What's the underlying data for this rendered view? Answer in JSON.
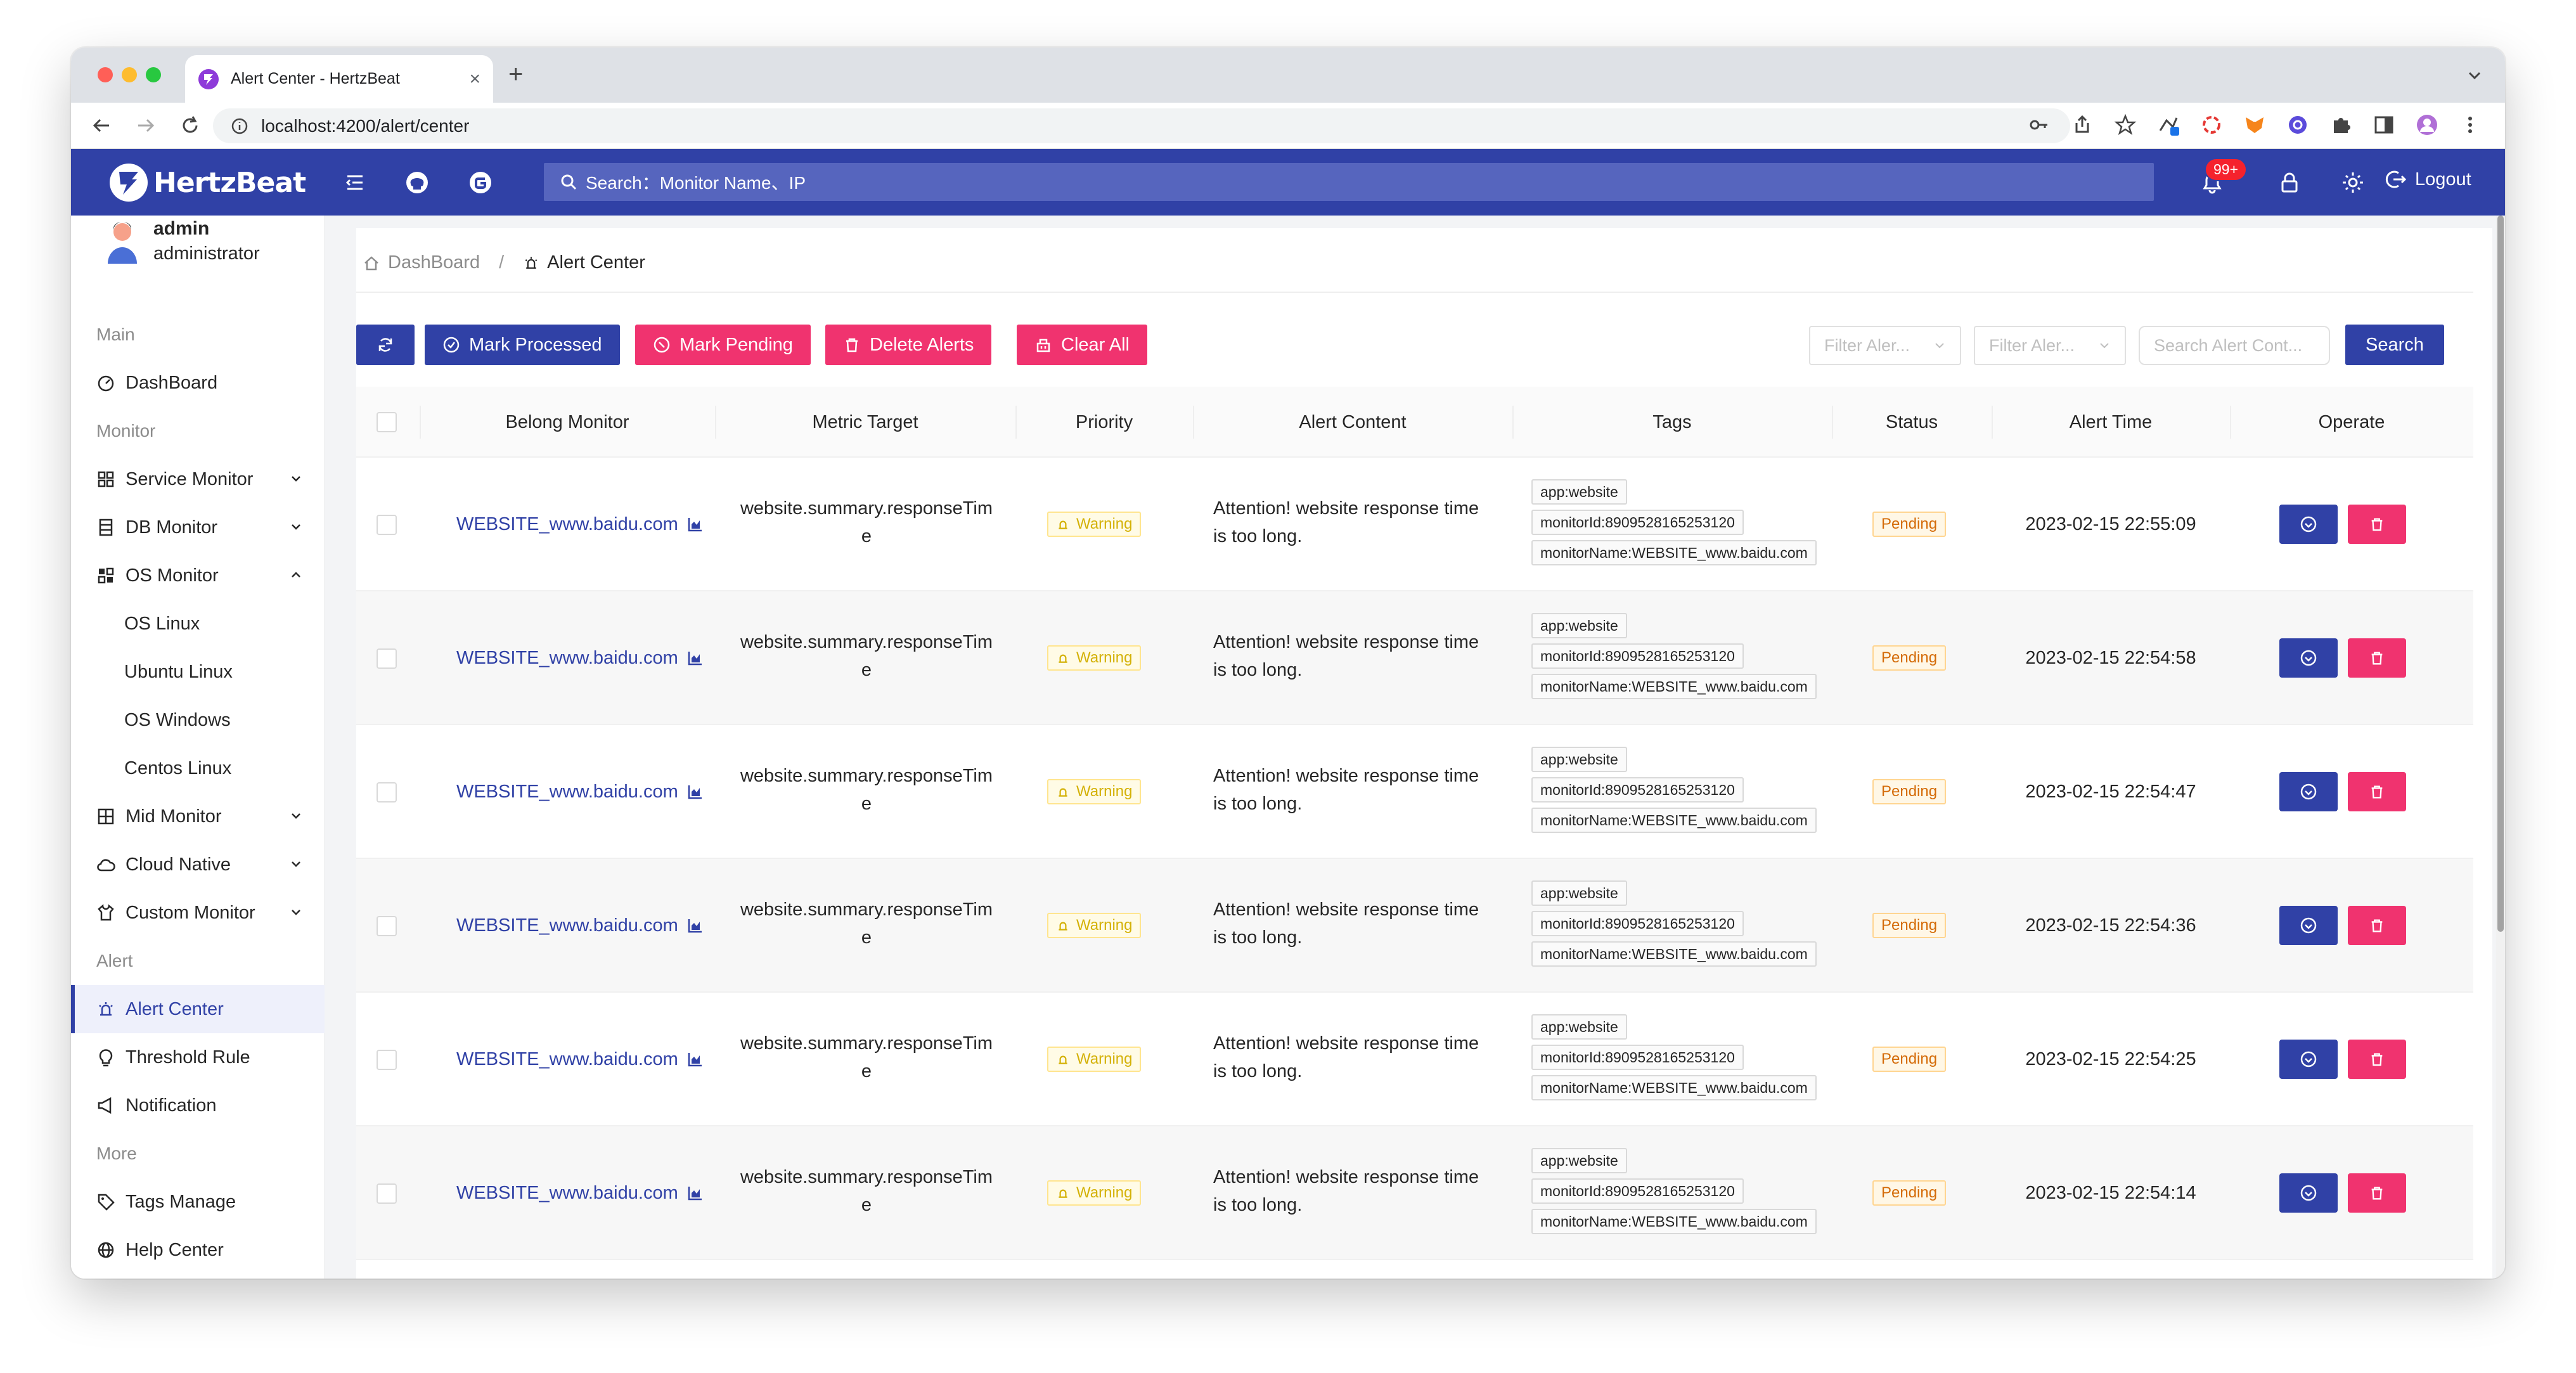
{
  "browser": {
    "tab_title": "Alert Center - HertzBeat",
    "url": "localhost:4200/alert/center",
    "traffic_lights": [
      "#ff5f57",
      "#febc2e",
      "#28c840"
    ]
  },
  "app": {
    "brand": "HertzBeat",
    "search_placeholder": "Search：Monitor Name、IP",
    "notification_badge": "99+",
    "logout_label": "Logout",
    "primary_color": "#3041a6",
    "danger_color": "#f0336f"
  },
  "user": {
    "name": "admin",
    "role": "administrator"
  },
  "sidebar": {
    "groups": {
      "main": "Main",
      "monitor": "Monitor",
      "alert": "Alert",
      "more": "More"
    },
    "items": {
      "dashboard": "DashBoard",
      "service_monitor": "Service Monitor",
      "db_monitor": "DB Monitor",
      "os_monitor": "OS Monitor",
      "os_linux": "OS Linux",
      "ubuntu_linux": "Ubuntu Linux",
      "os_windows": "OS Windows",
      "centos_linux": "Centos Linux",
      "mid_monitor": "Mid Monitor",
      "cloud_native": "Cloud Native",
      "custom_monitor": "Custom Monitor",
      "alert_center": "Alert Center",
      "threshold_rule": "Threshold Rule",
      "notification": "Notification",
      "tags_manage": "Tags Manage",
      "help_center": "Help Center"
    }
  },
  "breadcrumb": {
    "home": "DashBoard",
    "sep": "/",
    "current": "Alert Center"
  },
  "toolbar": {
    "mark_processed": "Mark Processed",
    "mark_pending": "Mark Pending",
    "delete_alerts": "Delete Alerts",
    "clear_all": "Clear All",
    "filter_priority": "Filter Aler...",
    "filter_status": "Filter Aler...",
    "search_content": "Search Alert Cont...",
    "search_button": "Search"
  },
  "table": {
    "columns": {
      "monitor": "Belong Monitor",
      "metric": "Metric Target",
      "priority": "Priority",
      "content": "Alert Content",
      "tags": "Tags",
      "status": "Status",
      "time": "Alert Time",
      "operate": "Operate"
    },
    "rows": [
      {
        "monitor": "WEBSITE_www.baidu.com",
        "metric1": "website.summary.responseTim",
        "metric2": "e",
        "priority": "Warning",
        "content1": "Attention! website response time",
        "content2": "is too long.",
        "tag1": "app:website",
        "tag2": "monitorId:8909528165253120",
        "tag3": "monitorName:WEBSITE_www.baidu.com",
        "status": "Pending",
        "time": "2023-02-15 22:55:09"
      },
      {
        "monitor": "WEBSITE_www.baidu.com",
        "metric1": "website.summary.responseTim",
        "metric2": "e",
        "priority": "Warning",
        "content1": "Attention! website response time",
        "content2": "is too long.",
        "tag1": "app:website",
        "tag2": "monitorId:8909528165253120",
        "tag3": "monitorName:WEBSITE_www.baidu.com",
        "status": "Pending",
        "time": "2023-02-15 22:54:58"
      },
      {
        "monitor": "WEBSITE_www.baidu.com",
        "metric1": "website.summary.responseTim",
        "metric2": "e",
        "priority": "Warning",
        "content1": "Attention! website response time",
        "content2": "is too long.",
        "tag1": "app:website",
        "tag2": "monitorId:8909528165253120",
        "tag3": "monitorName:WEBSITE_www.baidu.com",
        "status": "Pending",
        "time": "2023-02-15 22:54:47"
      },
      {
        "monitor": "WEBSITE_www.baidu.com",
        "metric1": "website.summary.responseTim",
        "metric2": "e",
        "priority": "Warning",
        "content1": "Attention! website response time",
        "content2": "is too long.",
        "tag1": "app:website",
        "tag2": "monitorId:8909528165253120",
        "tag3": "monitorName:WEBSITE_www.baidu.com",
        "status": "Pending",
        "time": "2023-02-15 22:54:36"
      },
      {
        "monitor": "WEBSITE_www.baidu.com",
        "metric1": "website.summary.responseTim",
        "metric2": "e",
        "priority": "Warning",
        "content1": "Attention! website response time",
        "content2": "is too long.",
        "tag1": "app:website",
        "tag2": "monitorId:8909528165253120",
        "tag3": "monitorName:WEBSITE_www.baidu.com",
        "status": "Pending",
        "time": "2023-02-15 22:54:25"
      },
      {
        "monitor": "WEBSITE_www.baidu.com",
        "metric1": "website.summary.responseTim",
        "metric2": "e",
        "priority": "Warning",
        "content1": "Attention! website response time",
        "content2": "is too long.",
        "tag1": "app:website",
        "tag2": "monitorId:8909528165253120",
        "tag3": "monitorName:WEBSITE_www.baidu.com",
        "status": "Pending",
        "time": "2023-02-15 22:54:14"
      }
    ]
  }
}
